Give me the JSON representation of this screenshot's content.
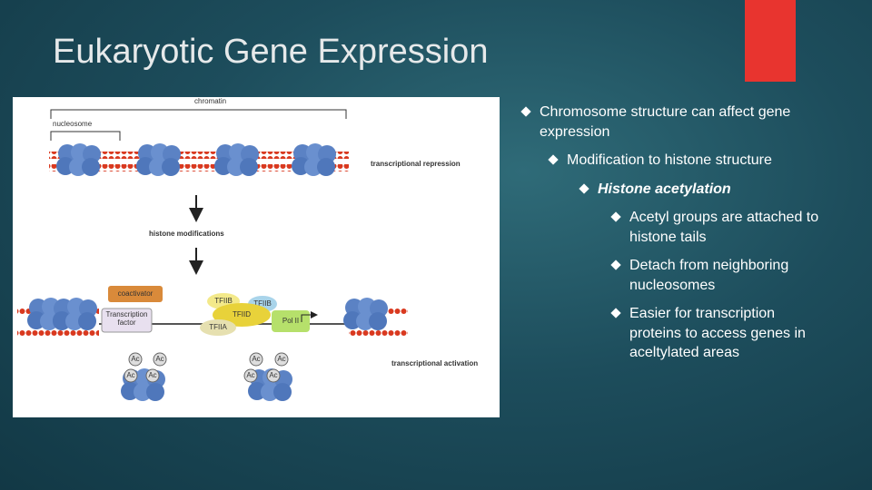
{
  "header": {
    "title": "Eukaryotic Gene Expression"
  },
  "figure": {
    "labels": {
      "chromatin": "chromatin",
      "nucleosome": "nucleosome",
      "repression": "transcriptional repression",
      "modifications": "histone modifications",
      "coactivator": "coactivator",
      "factor": "Transcription factor",
      "tfiib": "TFIIB",
      "tfiid": "TFIID",
      "tfiia": "TFIIA",
      "pol": "Pol II",
      "activation": "transcriptional activation"
    },
    "ac": "Ac"
  },
  "bullets": [
    {
      "text": "Chromosome structure can affect gene expression",
      "children": [
        {
          "text": "Modification to histone structure",
          "children": [
            {
              "text": "Histone acetylation",
              "children": [
                {
                  "text": "Acetyl groups are attached to histone tails"
                },
                {
                  "text": "Detach from neighboring nucleosomes"
                },
                {
                  "text": "Easier for transcription proteins to access genes in aceltylated areas"
                }
              ]
            }
          ]
        }
      ]
    }
  ]
}
